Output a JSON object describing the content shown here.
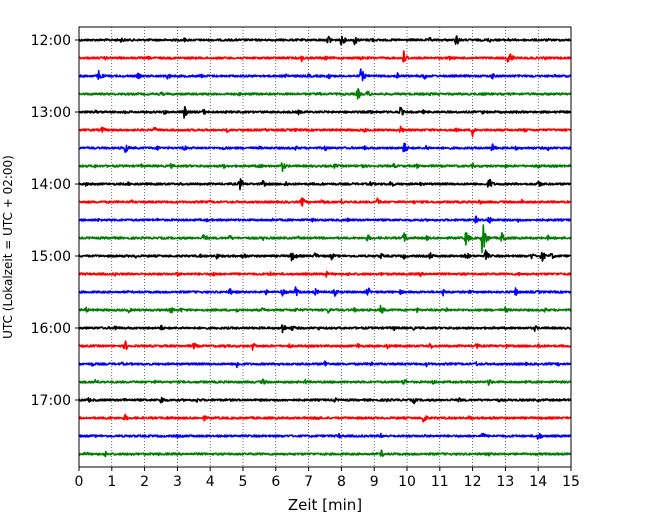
{
  "chart_data": {
    "type": "line",
    "title": "",
    "xlabel": "Zeit  [min]",
    "ylabel": "UTC (Lokalzeit = UTC + 02:00)",
    "xlim": [
      0,
      15
    ],
    "x_ticks": [
      0,
      1,
      2,
      3,
      4,
      5,
      6,
      7,
      8,
      9,
      10,
      11,
      12,
      13,
      14,
      15
    ],
    "x_tick_labels": [
      "0",
      "1",
      "2",
      "3",
      "4",
      "5",
      "6",
      "7",
      "8",
      "9",
      "10",
      "11",
      "12",
      "13",
      "14",
      "15"
    ],
    "y_tick_labels": [
      "12:00",
      "13:00",
      "14:00",
      "15:00",
      "16:00",
      "17:00"
    ],
    "row_interval_min": 15,
    "grid": "vertical dotted at each minute",
    "colors": [
      "#000000",
      "#ff0000",
      "#0000ff",
      "#008000"
    ],
    "series": [
      {
        "start": "12:00",
        "color": "#000000",
        "events": [
          [
            1.3,
            0.22
          ],
          [
            3.2,
            0.18
          ],
          [
            7.6,
            0.4
          ],
          [
            8.0,
            0.48
          ],
          [
            8.4,
            0.4
          ],
          [
            8.9,
            0.25
          ],
          [
            10.7,
            0.2
          ],
          [
            11.5,
            0.5
          ],
          [
            12.5,
            0.22
          ],
          [
            13.1,
            0.15
          ]
        ]
      },
      {
        "start": "12:15",
        "color": "#ff0000",
        "events": [
          [
            0.8,
            0.15
          ],
          [
            2.1,
            0.15
          ],
          [
            4.0,
            0.12
          ],
          [
            6.8,
            0.3
          ],
          [
            7.5,
            0.2
          ],
          [
            8.6,
            0.15
          ],
          [
            9.9,
            0.55
          ],
          [
            11.3,
            0.2
          ],
          [
            13.1,
            0.7
          ],
          [
            14.2,
            0.15
          ]
        ]
      },
      {
        "start": "12:30",
        "color": "#0000ff",
        "events": [
          [
            0.6,
            0.45
          ],
          [
            1.8,
            0.25
          ],
          [
            2.7,
            0.3
          ],
          [
            3.7,
            0.2
          ],
          [
            5.0,
            0.15
          ],
          [
            6.3,
            0.25
          ],
          [
            7.0,
            0.2
          ],
          [
            7.6,
            0.25
          ],
          [
            8.6,
            0.6
          ],
          [
            9.7,
            0.3
          ],
          [
            10.5,
            0.35
          ],
          [
            12.6,
            0.25
          ],
          [
            13.8,
            0.15
          ],
          [
            14.5,
            0.12
          ]
        ]
      },
      {
        "start": "12:45",
        "color": "#008000",
        "events": [
          [
            2.5,
            0.2
          ],
          [
            4.9,
            0.15
          ],
          [
            7.3,
            0.18
          ],
          [
            8.5,
            0.45
          ],
          [
            8.8,
            0.3
          ],
          [
            10.7,
            0.15
          ],
          [
            12.3,
            0.15
          ],
          [
            14.1,
            0.15
          ]
        ]
      },
      {
        "start": "13:00",
        "color": "#000000",
        "events": [
          [
            0.5,
            0.15
          ],
          [
            1.4,
            0.15
          ],
          [
            2.6,
            0.2
          ],
          [
            3.2,
            0.55
          ],
          [
            3.8,
            0.25
          ],
          [
            6.7,
            0.2
          ],
          [
            8.9,
            0.2
          ],
          [
            9.8,
            0.4
          ],
          [
            10.5,
            0.15
          ],
          [
            12.3,
            0.15
          ],
          [
            13.3,
            0.15
          ]
        ]
      },
      {
        "start": "13:15",
        "color": "#ff0000",
        "events": [
          [
            0.7,
            0.3
          ],
          [
            2.3,
            0.25
          ],
          [
            4.5,
            0.2
          ],
          [
            5.7,
            0.15
          ],
          [
            6.6,
            0.15
          ],
          [
            8.7,
            0.2
          ],
          [
            9.8,
            0.3
          ],
          [
            11.5,
            0.15
          ],
          [
            12.0,
            0.5
          ],
          [
            13.6,
            0.2
          ]
        ]
      },
      {
        "start": "13:30",
        "color": "#0000ff",
        "events": [
          [
            1.4,
            0.45
          ],
          [
            2.4,
            0.2
          ],
          [
            3.2,
            0.25
          ],
          [
            4.4,
            0.2
          ],
          [
            5.5,
            0.15
          ],
          [
            6.6,
            0.2
          ],
          [
            7.5,
            0.25
          ],
          [
            8.7,
            0.2
          ],
          [
            9.9,
            0.55
          ],
          [
            10.6,
            0.25
          ],
          [
            12.6,
            0.4
          ],
          [
            13.3,
            0.2
          ],
          [
            14.3,
            0.2
          ]
        ]
      },
      {
        "start": "13:45",
        "color": "#008000",
        "events": [
          [
            0.5,
            0.15
          ],
          [
            1.9,
            0.15
          ],
          [
            2.8,
            0.2
          ],
          [
            4.4,
            0.2
          ],
          [
            5.5,
            0.25
          ],
          [
            6.2,
            0.4
          ],
          [
            7.8,
            0.2
          ],
          [
            8.6,
            0.3
          ],
          [
            9.6,
            0.2
          ],
          [
            10.3,
            0.2
          ],
          [
            12.0,
            0.2
          ],
          [
            13.0,
            0.15
          ],
          [
            14.0,
            0.2
          ]
        ]
      },
      {
        "start": "14:00",
        "color": "#000000",
        "events": [
          [
            0.2,
            0.2
          ],
          [
            1.5,
            0.15
          ],
          [
            3.1,
            0.15
          ],
          [
            4.9,
            0.5
          ],
          [
            5.6,
            0.3
          ],
          [
            6.3,
            0.25
          ],
          [
            7.4,
            0.15
          ],
          [
            8.9,
            0.25
          ],
          [
            9.5,
            0.35
          ],
          [
            10.4,
            0.15
          ],
          [
            12.5,
            0.55
          ],
          [
            14.0,
            0.35
          ]
        ]
      },
      {
        "start": "14:15",
        "color": "#ff0000",
        "events": [
          [
            1.6,
            0.15
          ],
          [
            4.0,
            0.15
          ],
          [
            6.8,
            0.4
          ],
          [
            7.4,
            0.25
          ],
          [
            8.0,
            0.2
          ],
          [
            9.1,
            0.3
          ],
          [
            10.2,
            0.15
          ],
          [
            12.2,
            0.2
          ],
          [
            13.5,
            0.2
          ]
        ]
      },
      {
        "start": "14:30",
        "color": "#0000ff",
        "events": [
          [
            0.6,
            0.15
          ],
          [
            2.4,
            0.15
          ],
          [
            3.9,
            0.15
          ],
          [
            5.9,
            0.15
          ],
          [
            7.1,
            0.15
          ],
          [
            8.2,
            0.15
          ],
          [
            12.1,
            0.3
          ],
          [
            12.5,
            0.4
          ],
          [
            13.4,
            0.2
          ]
        ]
      },
      {
        "start": "14:45",
        "color": "#008000",
        "events": [
          [
            1.0,
            0.2
          ],
          [
            3.8,
            0.4
          ],
          [
            4.6,
            0.25
          ],
          [
            5.6,
            0.2
          ],
          [
            6.7,
            0.15
          ],
          [
            8.8,
            0.3
          ],
          [
            9.9,
            0.45
          ],
          [
            10.6,
            0.2
          ],
          [
            11.8,
            0.6
          ],
          [
            12.3,
            1.35
          ],
          [
            12.9,
            0.55
          ],
          [
            14.3,
            0.2
          ]
        ]
      },
      {
        "start": "15:00",
        "color": "#000000",
        "events": [
          [
            1.7,
            0.2
          ],
          [
            3.7,
            0.15
          ],
          [
            4.2,
            0.25
          ],
          [
            5.0,
            0.35
          ],
          [
            6.5,
            0.55
          ],
          [
            7.2,
            0.3
          ],
          [
            7.7,
            0.3
          ],
          [
            9.2,
            0.25
          ],
          [
            9.9,
            0.25
          ],
          [
            10.7,
            0.3
          ],
          [
            11.8,
            0.35
          ],
          [
            12.4,
            0.45
          ],
          [
            13.8,
            0.25
          ],
          [
            14.1,
            0.5
          ],
          [
            14.4,
            0.3
          ]
        ]
      },
      {
        "start": "15:15",
        "color": "#ff0000",
        "events": [
          [
            1.1,
            0.15
          ],
          [
            3.0,
            0.2
          ],
          [
            4.1,
            0.25
          ],
          [
            5.8,
            0.25
          ],
          [
            7.5,
            0.35
          ],
          [
            8.2,
            0.15
          ],
          [
            9.2,
            0.15
          ],
          [
            10.4,
            0.2
          ],
          [
            11.7,
            0.15
          ],
          [
            13.4,
            0.15
          ]
        ]
      },
      {
        "start": "15:30",
        "color": "#0000ff",
        "events": [
          [
            4.6,
            0.3
          ],
          [
            5.7,
            0.2
          ],
          [
            6.2,
            0.35
          ],
          [
            6.6,
            0.4
          ],
          [
            7.2,
            0.3
          ],
          [
            7.8,
            0.3
          ],
          [
            8.8,
            0.4
          ],
          [
            9.8,
            0.2
          ],
          [
            11.1,
            0.3
          ],
          [
            11.9,
            0.15
          ],
          [
            13.3,
            0.35
          ],
          [
            14.0,
            0.15
          ]
        ]
      },
      {
        "start": "15:45",
        "color": "#008000",
        "events": [
          [
            0.2,
            0.25
          ],
          [
            1.5,
            0.25
          ],
          [
            2.8,
            0.3
          ],
          [
            3.1,
            0.2
          ],
          [
            4.8,
            0.2
          ],
          [
            5.6,
            0.2
          ],
          [
            6.6,
            0.2
          ],
          [
            7.6,
            0.25
          ],
          [
            8.4,
            0.2
          ],
          [
            9.2,
            0.4
          ],
          [
            10.3,
            0.2
          ],
          [
            11.2,
            0.2
          ],
          [
            13.0,
            0.25
          ],
          [
            14.2,
            0.2
          ]
        ]
      },
      {
        "start": "16:00",
        "color": "#000000",
        "events": [
          [
            1.1,
            0.25
          ],
          [
            2.5,
            0.25
          ],
          [
            6.2,
            0.45
          ],
          [
            6.5,
            0.25
          ],
          [
            7.3,
            0.15
          ],
          [
            9.6,
            0.2
          ],
          [
            10.2,
            0.15
          ],
          [
            13.9,
            0.25
          ]
        ]
      },
      {
        "start": "16:15",
        "color": "#ff0000",
        "events": [
          [
            1.4,
            0.45
          ],
          [
            3.5,
            0.3
          ],
          [
            4.4,
            0.2
          ],
          [
            5.3,
            0.35
          ],
          [
            6.4,
            0.2
          ],
          [
            8.5,
            0.25
          ],
          [
            9.4,
            0.2
          ],
          [
            10.7,
            0.3
          ],
          [
            12.1,
            0.3
          ],
          [
            13.0,
            0.2
          ],
          [
            14.0,
            0.25
          ]
        ]
      },
      {
        "start": "16:30",
        "color": "#0000ff",
        "events": [
          [
            0.4,
            0.2
          ],
          [
            1.3,
            0.15
          ],
          [
            4.8,
            0.35
          ],
          [
            6.1,
            0.2
          ],
          [
            7.5,
            0.3
          ],
          [
            8.9,
            0.2
          ],
          [
            10.6,
            0.2
          ],
          [
            12.1,
            0.2
          ],
          [
            13.6,
            0.15
          ],
          [
            14.6,
            0.15
          ]
        ]
      },
      {
        "start": "16:45",
        "color": "#008000",
        "events": [
          [
            0.5,
            0.25
          ],
          [
            2.3,
            0.15
          ],
          [
            5.6,
            0.25
          ],
          [
            6.9,
            0.2
          ],
          [
            9.9,
            0.35
          ],
          [
            10.8,
            0.2
          ],
          [
            12.5,
            0.3
          ],
          [
            13.6,
            0.15
          ]
        ]
      },
      {
        "start": "17:00",
        "color": "#000000",
        "events": [
          [
            0.3,
            0.2
          ],
          [
            1.4,
            0.15
          ],
          [
            2.5,
            0.35
          ],
          [
            3.6,
            0.2
          ],
          [
            6.0,
            0.15
          ],
          [
            7.8,
            0.2
          ],
          [
            9.4,
            0.2
          ],
          [
            10.2,
            0.3
          ],
          [
            11.6,
            0.2
          ],
          [
            12.8,
            0.15
          ],
          [
            14.0,
            0.15
          ]
        ]
      },
      {
        "start": "17:15",
        "color": "#ff0000",
        "events": [
          [
            0.9,
            0.2
          ],
          [
            1.4,
            0.3
          ],
          [
            2.7,
            0.15
          ],
          [
            3.8,
            0.25
          ],
          [
            7.2,
            0.3
          ],
          [
            8.3,
            0.15
          ],
          [
            10.5,
            0.45
          ],
          [
            11.9,
            0.2
          ],
          [
            12.6,
            0.2
          ],
          [
            14.1,
            0.15
          ]
        ]
      },
      {
        "start": "17:30",
        "color": "#0000ff",
        "events": [
          [
            3.0,
            0.15
          ],
          [
            7.9,
            0.25
          ],
          [
            9.2,
            0.2
          ],
          [
            10.5,
            0.15
          ],
          [
            12.3,
            0.3
          ],
          [
            14.0,
            0.4
          ]
        ]
      },
      {
        "start": "17:45",
        "color": "#008000",
        "events": [
          [
            0.2,
            0.2
          ],
          [
            0.8,
            0.25
          ],
          [
            1.6,
            0.15
          ],
          [
            2.4,
            0.15
          ],
          [
            9.2,
            0.35
          ],
          [
            12.5,
            0.15
          ]
        ]
      }
    ]
  }
}
